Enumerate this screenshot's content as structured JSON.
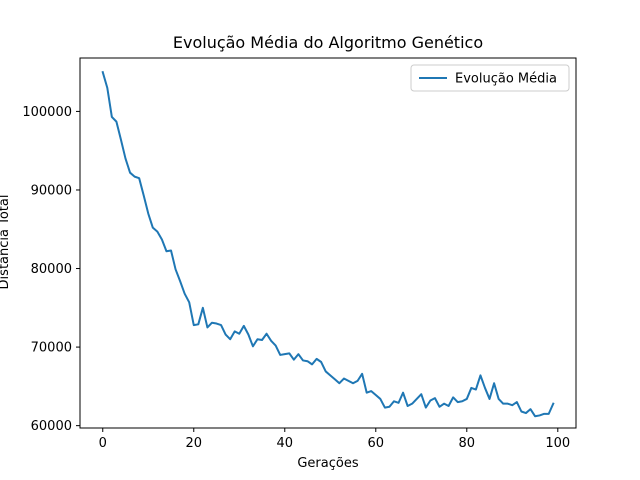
{
  "chart_data": {
    "type": "line",
    "title": "Evolução Média do Algoritmo Genético",
    "xlabel": "Gerações",
    "ylabel": "Distância Total",
    "xlim": [
      -5,
      104
    ],
    "ylim": [
      59700,
      106800
    ],
    "xticks": [
      0,
      20,
      40,
      60,
      80,
      100
    ],
    "xtick_labels": [
      "0",
      "20",
      "40",
      "60",
      "80",
      "100"
    ],
    "yticks": [
      60000,
      70000,
      80000,
      90000,
      100000
    ],
    "ytick_labels": [
      "60000",
      "70000",
      "80000",
      "90000",
      "100000"
    ],
    "grid": false,
    "legend_position": "top-right",
    "series": [
      {
        "name": "Evolução Média",
        "color": "#1f77b4",
        "x": [
          0,
          1,
          2,
          3,
          4,
          5,
          6,
          7,
          8,
          9,
          10,
          11,
          12,
          13,
          14,
          15,
          16,
          17,
          18,
          19,
          20,
          21,
          22,
          23,
          24,
          25,
          26,
          27,
          28,
          29,
          30,
          31,
          32,
          33,
          34,
          35,
          36,
          37,
          38,
          39,
          40,
          41,
          42,
          43,
          44,
          45,
          46,
          47,
          48,
          49,
          50,
          51,
          52,
          53,
          54,
          55,
          56,
          57,
          58,
          59,
          60,
          61,
          62,
          63,
          64,
          65,
          66,
          67,
          68,
          69,
          70,
          71,
          72,
          73,
          74,
          75,
          76,
          77,
          78,
          79,
          80,
          81,
          82,
          83,
          84,
          85,
          86,
          87,
          88,
          89,
          90,
          91,
          92,
          93,
          94,
          95,
          96,
          97,
          98,
          99
        ],
        "values": [
          105000,
          103000,
          99300,
          98700,
          96400,
          94000,
          92200,
          91700,
          91500,
          89300,
          87000,
          85200,
          84700,
          83700,
          82200,
          82300,
          79900,
          78400,
          76800,
          75700,
          72800,
          72900,
          75000,
          72500,
          73100,
          73000,
          72800,
          71600,
          71000,
          72000,
          71700,
          72700,
          71600,
          70100,
          71000,
          70900,
          71700,
          70800,
          70200,
          69000,
          69100,
          69200,
          68400,
          69100,
          68300,
          68200,
          67800,
          68500,
          68100,
          66900,
          66400,
          65900,
          65400,
          66000,
          65700,
          65400,
          65700,
          66600,
          64200,
          64400,
          63900,
          63400,
          62300,
          62400,
          63100,
          62900,
          64200,
          62500,
          62800,
          63400,
          64000,
          62300,
          63200,
          63500,
          62400,
          62800,
          62500,
          63600,
          63000,
          63100,
          63400,
          64800,
          64600,
          66400,
          64800,
          63400,
          65400,
          63400,
          62800,
          62800,
          62600,
          63000,
          61800,
          61600,
          62100,
          61200,
          61300,
          61500,
          61500,
          62800
        ]
      }
    ]
  }
}
